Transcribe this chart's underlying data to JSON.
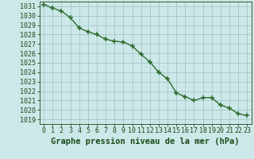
{
  "x": [
    0,
    1,
    2,
    3,
    4,
    5,
    6,
    7,
    8,
    9,
    10,
    11,
    12,
    13,
    14,
    15,
    16,
    17,
    18,
    19,
    20,
    21,
    22,
    23
  ],
  "y": [
    1031.2,
    1030.8,
    1030.5,
    1029.8,
    1028.7,
    1028.3,
    1028.0,
    1027.5,
    1027.3,
    1027.2,
    1026.8,
    1025.9,
    1025.1,
    1024.0,
    1023.3,
    1021.8,
    1021.4,
    1021.0,
    1021.3,
    1021.3,
    1020.5,
    1020.2,
    1019.6,
    1019.4
  ],
  "line_color": "#2d6b2d",
  "marker": "+",
  "markersize": 4,
  "linewidth": 1.0,
  "background_color": "#cde8e8",
  "grid_color": "#a0c8c8",
  "title": "Graphe pression niveau de la mer (hPa)",
  "title_fontsize": 7,
  "tick_color": "#1a4a1a",
  "xlim": [
    -0.5,
    23.5
  ],
  "ylim": [
    1018.5,
    1031.5
  ],
  "yticks": [
    1019,
    1020,
    1021,
    1022,
    1023,
    1024,
    1025,
    1026,
    1027,
    1028,
    1029,
    1030,
    1031
  ],
  "xticks": [
    0,
    1,
    2,
    3,
    4,
    5,
    6,
    7,
    8,
    9,
    10,
    11,
    12,
    13,
    14,
    15,
    16,
    17,
    18,
    19,
    20,
    21,
    22,
    23
  ],
  "tick_fontsize": 6,
  "xlabel_fontsize": 7.5
}
